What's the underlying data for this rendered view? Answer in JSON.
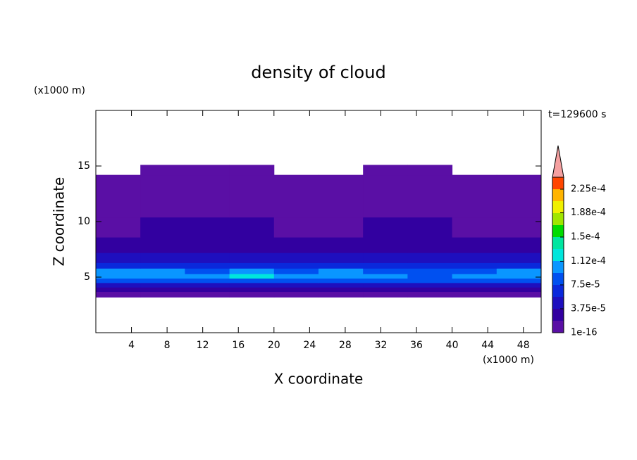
{
  "chart_data": {
    "type": "contour",
    "title": "density of cloud",
    "x_label": "X coordinate",
    "y_label": "Z coordinate",
    "x_unit": "(x1000 m)",
    "y_unit": "(x1000 m)",
    "time_label": "t=129600 s",
    "xlim": [
      0,
      50
    ],
    "ylim": [
      0,
      20
    ],
    "xticks": [
      4,
      8,
      12,
      16,
      20,
      24,
      28,
      32,
      36,
      40,
      44,
      48
    ],
    "yticks": [
      5,
      10,
      15
    ],
    "x_edges": [
      0,
      5,
      10,
      15,
      20,
      25,
      30,
      35,
      40,
      45,
      50
    ],
    "y_edges": [
      3.2,
      3.7,
      4.1,
      4.5,
      4.9,
      5.3,
      5.8,
      6.3,
      7.2,
      8.6,
      10.4,
      14.2,
      15.1
    ],
    "values": [
      [
        5e-06,
        5e-06,
        5e-06,
        5e-06,
        5e-06,
        5e-06,
        5e-06,
        5e-06,
        5e-06,
        5e-06
      ],
      [
        2.5e-05,
        2.5e-05,
        2.5e-05,
        2.5e-05,
        2.5e-05,
        2.5e-05,
        2.5e-05,
        2.5e-05,
        2.5e-05,
        2.5e-05
      ],
      [
        4.5e-05,
        5e-05,
        4.5e-05,
        5e-05,
        4.5e-05,
        4.5e-05,
        5e-05,
        4.5e-05,
        5e-05,
        4.5e-05
      ],
      [
        8e-05,
        7.8e-05,
        8e-05,
        9e-05,
        8e-05,
        7.8e-05,
        8e-05,
        7.8e-05,
        8.5e-05,
        8e-05
      ],
      [
        0.000105,
        9.5e-05,
        0.0001,
        0.000115,
        0.0001,
        0.00011,
        9.5e-05,
        9e-05,
        0.0001,
        0.000105
      ],
      [
        9.5e-05,
        0.0001,
        8.5e-05,
        0.000105,
        9e-05,
        0.0001,
        8e-05,
        8.5e-05,
        9e-05,
        9.5e-05
      ],
      [
        6.5e-05,
        6e-05,
        7e-05,
        6.5e-05,
        6e-05,
        7e-05,
        6e-05,
        6.5e-05,
        6e-05,
        7e-05
      ],
      [
        4.5e-05,
        4e-05,
        4.5e-05,
        4e-05,
        4.5e-05,
        4e-05,
        4.5e-05,
        4e-05,
        4.5e-05,
        4.5e-05
      ],
      [
        2.5e-05,
        3e-05,
        2.5e-05,
        3e-05,
        2.5e-05,
        3e-05,
        2.5e-05,
        3e-05,
        2.5e-05,
        3e-05
      ],
      [
        5e-06,
        2.5e-05,
        2.5e-05,
        2.5e-05,
        5e-06,
        5e-06,
        2.5e-05,
        2.5e-05,
        5e-06,
        5e-06
      ],
      [
        5e-06,
        5e-06,
        5e-06,
        5e-06,
        5e-06,
        5e-06,
        5e-06,
        5e-06,
        5e-06,
        5e-06
      ],
      [
        null,
        5e-06,
        5e-06,
        5e-06,
        null,
        null,
        5e-06,
        5e-06,
        null,
        null
      ]
    ],
    "clim": [
      1e-16,
      0.00024375
    ],
    "cticks": [
      1e-16,
      {
        "value": 3.75e-05,
        "label": "3.75e-5"
      },
      {
        "value": 7.5e-05,
        "label": "7.5e-5"
      },
      {
        "value": 0.000112,
        "label": "1.12e-4"
      },
      {
        "value": 0.00015,
        "label": "1.5e-4"
      },
      {
        "value": 0.000188,
        "label": "1.88e-4"
      },
      {
        "value": 0.000225,
        "label": "2.25e-4"
      }
    ],
    "colors": [
      "#5a0fa5",
      "#3200a0",
      "#1e0fbe",
      "#0a28dc",
      "#0050f0",
      "#0a96ff",
      "#00e6dc",
      "#00e6a0",
      "#00dc00",
      "#a0e600",
      "#f0f000",
      "#ffb400",
      "#ff4600"
    ],
    "over_color": "#f5a0a0"
  }
}
